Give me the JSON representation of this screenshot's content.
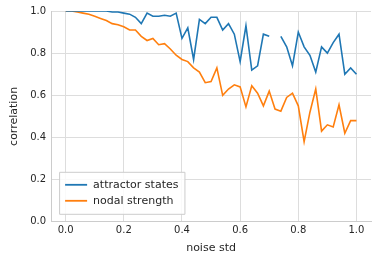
{
  "chart_data": {
    "type": "line",
    "x_label": "noise std",
    "y_label": "correlation",
    "x": [
      0,
      0.02,
      0.04,
      0.06,
      0.08,
      0.1,
      0.12,
      0.14,
      0.16,
      0.18,
      0.2,
      0.22,
      0.24,
      0.26,
      0.28,
      0.3,
      0.32,
      0.34,
      0.36,
      0.38,
      0.4,
      0.42,
      0.44,
      0.46,
      0.48,
      0.5,
      0.52,
      0.54,
      0.56,
      0.58,
      0.6,
      0.62,
      0.64,
      0.66,
      0.68,
      0.7,
      0.72,
      0.74,
      0.76,
      0.78,
      0.8,
      0.82,
      0.84,
      0.86,
      0.88,
      0.9,
      0.92,
      0.94,
      0.96,
      0.98,
      1.0
    ],
    "series": [
      {
        "name": "attractor states",
        "color": "#1f77b4",
        "values": [
          1.0,
          1.0,
          1.0,
          1.0,
          1.0,
          1.0,
          1.0,
          1.0,
          0.995,
          0.995,
          0.99,
          0.985,
          0.97,
          0.94,
          0.99,
          0.975,
          0.975,
          0.98,
          0.975,
          0.99,
          0.87,
          0.92,
          0.77,
          0.96,
          0.94,
          0.97,
          0.97,
          0.91,
          0.94,
          0.89,
          0.76,
          0.93,
          0.72,
          0.74,
          0.89,
          0.88,
          null,
          0.88,
          0.83,
          0.74,
          0.9,
          0.83,
          0.79,
          0.71,
          0.83,
          0.8,
          0.85,
          0.89,
          0.7,
          0.73,
          0.7
        ]
      },
      {
        "name": "nodal strength",
        "color": "#ff7f0e",
        "values": [
          1.0,
          1.0,
          0.995,
          0.99,
          0.985,
          0.975,
          0.965,
          0.955,
          0.94,
          0.935,
          0.925,
          0.91,
          0.91,
          0.88,
          0.86,
          0.87,
          0.84,
          0.845,
          0.82,
          0.79,
          0.77,
          0.76,
          0.73,
          0.71,
          0.66,
          0.665,
          0.73,
          0.6,
          0.63,
          0.65,
          0.64,
          0.545,
          0.645,
          0.61,
          0.55,
          0.62,
          0.535,
          0.525,
          0.59,
          0.61,
          0.55,
          0.38,
          0.52,
          0.63,
          0.43,
          0.46,
          0.45,
          0.555,
          0.42,
          0.48,
          0.48
        ]
      }
    ],
    "xlim": [
      -0.05,
      1.05
    ],
    "xticks": [
      {
        "value": 0,
        "label": "0.0"
      },
      0.2,
      0.4,
      0.6,
      0.8,
      {
        "value": 1,
        "label": "1.0"
      }
    ],
    "ylim": [
      0,
      1
    ],
    "yticks": [
      {
        "value": 0,
        "label": "0.0"
      },
      0.2,
      0.4,
      0.6,
      0.8,
      {
        "value": 1,
        "label": "1.0"
      }
    ],
    "grid": true,
    "legend": "lower left"
  }
}
